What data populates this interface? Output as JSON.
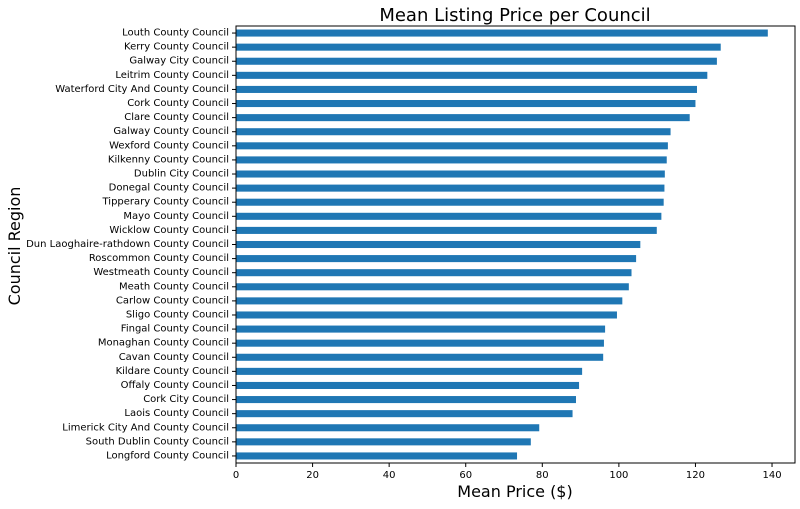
{
  "chart_data": {
    "type": "bar",
    "orientation": "horizontal",
    "title": "Mean Listing Price per Council",
    "xlabel": "Mean Price ($)",
    "ylabel": "Council Region",
    "xlim": [
      0,
      146
    ],
    "xticks": [
      0,
      20,
      40,
      60,
      80,
      100,
      120,
      140
    ],
    "grid": false,
    "bar_color": "#1f77b4",
    "categories": [
      "Louth County Council",
      "Kerry County Council",
      "Galway City Council",
      "Leitrim County Council",
      "Waterford City And County Council",
      "Cork County Council",
      "Clare County Council",
      "Galway County Council",
      "Wexford County Council",
      "Kilkenny County Council",
      "Dublin City Council",
      "Donegal County Council",
      "Tipperary County Council",
      "Mayo County Council",
      "Wicklow County Council",
      "Dun Laoghaire-rathdown County Council",
      "Roscommon County Council",
      "Westmeath County Council",
      "Meath County Council",
      "Carlow County Council",
      "Sligo County Council",
      "Fingal County Council",
      "Monaghan County Council",
      "Cavan County Council",
      "Kildare County Council",
      "Offaly County Council",
      "Cork City Council",
      "Laois County Council",
      "Limerick City And County Council",
      "South Dublin County Council",
      "Longford County Council"
    ],
    "values": [
      138.9,
      126.6,
      125.6,
      123.1,
      120.4,
      120.0,
      118.5,
      113.5,
      112.8,
      112.5,
      112.0,
      111.9,
      111.7,
      111.1,
      109.9,
      105.6,
      104.5,
      103.3,
      102.6,
      100.9,
      99.5,
      96.4,
      96.1,
      95.9,
      90.4,
      89.6,
      88.8,
      87.9,
      79.2,
      77.0,
      73.4
    ]
  }
}
